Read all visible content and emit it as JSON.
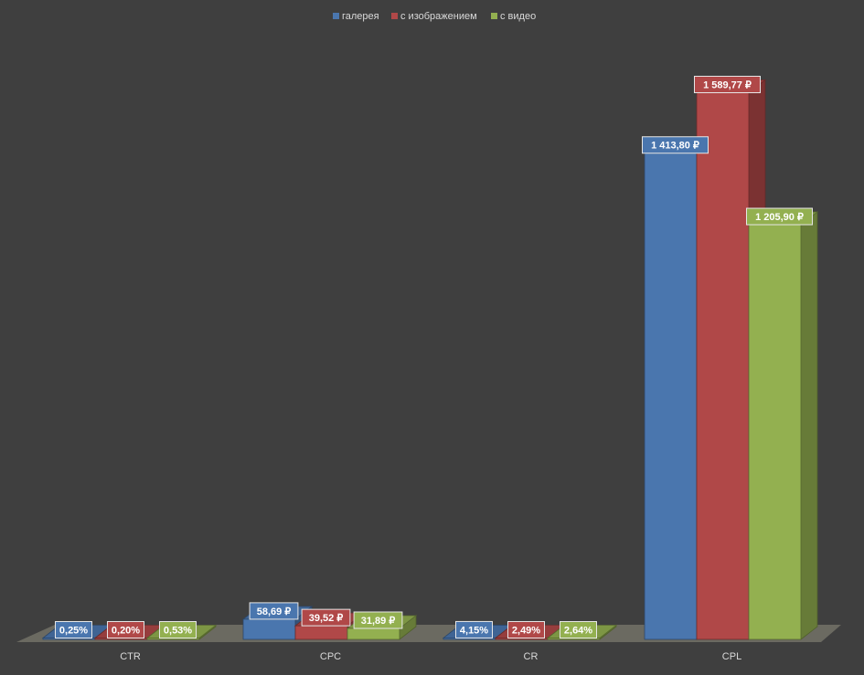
{
  "chart_data": {
    "type": "bar",
    "style": "3d-clustered-column",
    "categories": [
      "CTR",
      "CPC",
      "CR",
      "CPL"
    ],
    "series": [
      {
        "name": "галерея",
        "color": "#4a76ae",
        "values": [
          0.25,
          58.69,
          4.15,
          1413.8
        ],
        "labels": [
          "0,25%",
          "58,69 ₽",
          "4,15%",
          "1 413,80 ₽"
        ]
      },
      {
        "name": "с изображением",
        "color": "#b04848",
        "values": [
          0.2,
          39.52,
          2.49,
          1589.77
        ],
        "labels": [
          "0,20%",
          "39,52 ₽",
          "2,49%",
          "1 589,77 ₽"
        ]
      },
      {
        "name": "с видео",
        "color": "#93b050",
        "values": [
          0.53,
          31.89,
          2.64,
          1205.9
        ],
        "labels": [
          "0,53%",
          "31,89 ₽",
          "2,64%",
          "1 205,90 ₽"
        ]
      }
    ],
    "ylim": [
      0,
      1700
    ],
    "grid": false,
    "legend_position": "top"
  }
}
